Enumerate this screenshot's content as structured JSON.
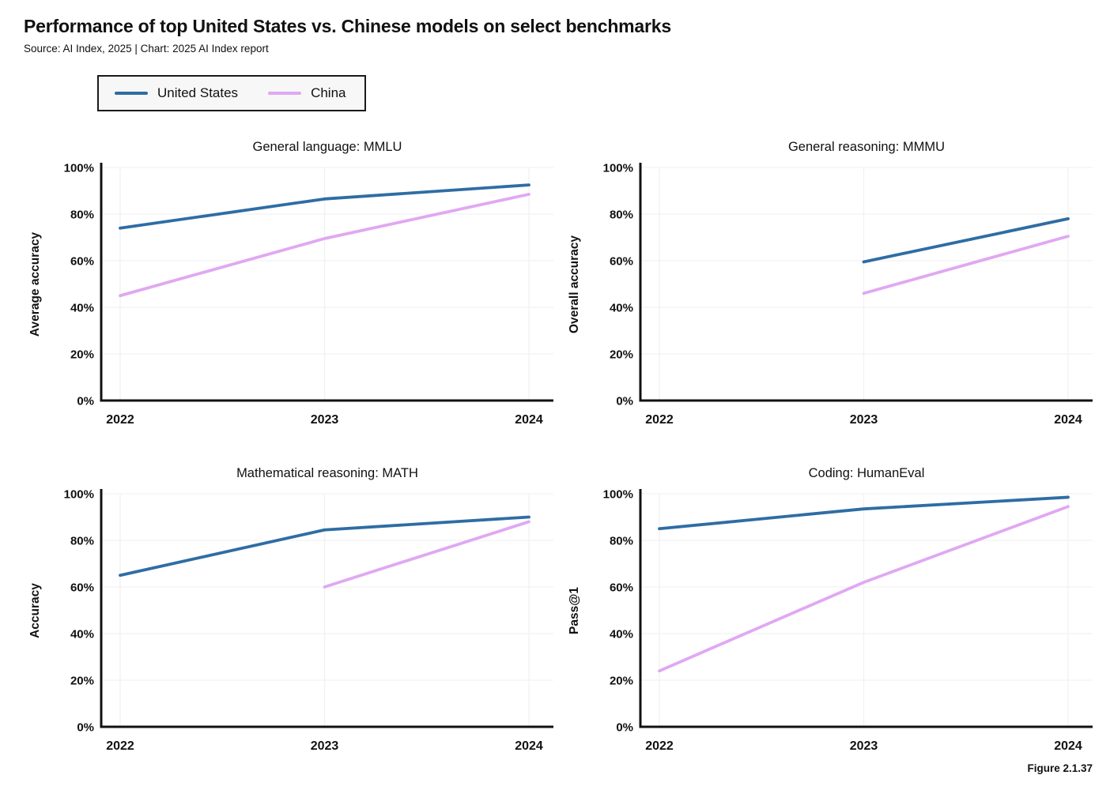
{
  "header": {
    "title": "Performance of top United States vs. Chinese models on select benchmarks",
    "subtitle": "Source: AI Index, 2025 | Chart: 2025 AI Index report"
  },
  "legend": {
    "items": [
      {
        "label": "United States",
        "color": "#2e6da4"
      },
      {
        "label": "China",
        "color": "#e0a8f2"
      }
    ]
  },
  "colors": {
    "united_states": "#2e6da4",
    "china": "#e0a8f2",
    "axis": "#111111",
    "gridline": "#f2f2f2",
    "legend_background": "#f7f7f7"
  },
  "axes": {
    "x_ticks": [
      {
        "value": 2022,
        "label": "2022"
      },
      {
        "value": 2023,
        "label": "2023"
      },
      {
        "value": 2024,
        "label": "2024"
      }
    ],
    "y_ticks": [
      {
        "value": 0,
        "label": "0%"
      },
      {
        "value": 20,
        "label": "20%"
      },
      {
        "value": 40,
        "label": "40%"
      },
      {
        "value": 60,
        "label": "60%"
      },
      {
        "value": 80,
        "label": "80%"
      },
      {
        "value": 100,
        "label": "100%"
      }
    ],
    "ylim": [
      0,
      100
    ],
    "grid": true
  },
  "chart_data": [
    {
      "type": "line",
      "title": "General language: MMLU",
      "ylabel": "Average accuracy",
      "xlabel": "",
      "ylim": [
        0,
        100
      ],
      "series": [
        {
          "name": "United States",
          "color": "#2e6da4",
          "x": [
            2022,
            2023,
            2024
          ],
          "values": [
            74,
            86.5,
            92.5
          ]
        },
        {
          "name": "China",
          "color": "#e0a8f2",
          "x": [
            2022,
            2023,
            2024
          ],
          "values": [
            45,
            69.5,
            88.5
          ]
        }
      ]
    },
    {
      "type": "line",
      "title": "General reasoning: MMMU",
      "ylabel": "Overall accuracy",
      "xlabel": "",
      "ylim": [
        0,
        100
      ],
      "series": [
        {
          "name": "United States",
          "color": "#2e6da4",
          "x": [
            2023,
            2024
          ],
          "values": [
            59.5,
            78
          ]
        },
        {
          "name": "China",
          "color": "#e0a8f2",
          "x": [
            2023,
            2024
          ],
          "values": [
            46,
            70.5
          ]
        }
      ]
    },
    {
      "type": "line",
      "title": "Mathematical reasoning: MATH",
      "ylabel": "Accuracy",
      "xlabel": "",
      "ylim": [
        0,
        100
      ],
      "series": [
        {
          "name": "United States",
          "color": "#2e6da4",
          "x": [
            2022,
            2023,
            2024
          ],
          "values": [
            65,
            84.5,
            90
          ]
        },
        {
          "name": "China",
          "color": "#e0a8f2",
          "x": [
            2023,
            2024
          ],
          "values": [
            60,
            88
          ]
        }
      ]
    },
    {
      "type": "line",
      "title": "Coding: HumanEval",
      "ylabel": "Pass@1",
      "xlabel": "",
      "ylim": [
        0,
        100
      ],
      "series": [
        {
          "name": "United States",
          "color": "#2e6da4",
          "x": [
            2022,
            2023,
            2024
          ],
          "values": [
            85,
            93.5,
            98.5
          ]
        },
        {
          "name": "China",
          "color": "#e0a8f2",
          "x": [
            2022,
            2023,
            2024
          ],
          "values": [
            24,
            62,
            94.5
          ]
        }
      ]
    }
  ],
  "figure_label": "Figure 2.1.37"
}
